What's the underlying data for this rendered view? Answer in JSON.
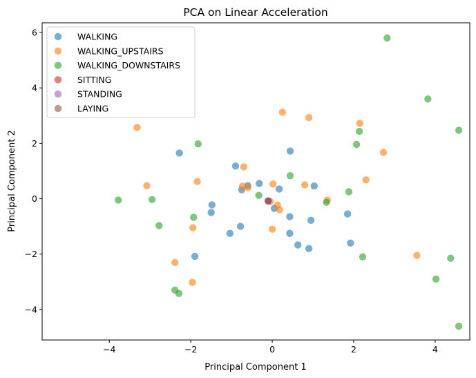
{
  "chart_data": {
    "type": "scatter",
    "title": "PCA on Linear Acceleration",
    "xlabel": "Principal Component 1",
    "ylabel": "Principal Component 2",
    "xlim": [
      -5.65,
      4.85
    ],
    "ylim": [
      -5.1,
      6.35
    ],
    "xticks": [
      -4,
      -2,
      0,
      2,
      4
    ],
    "yticks": [
      -4,
      -2,
      0,
      2,
      4,
      6
    ],
    "xtick_labels": [
      "−4",
      "−2",
      "0",
      "2",
      "4"
    ],
    "ytick_labels": [
      "−4",
      "−2",
      "0",
      "2",
      "4",
      "6"
    ],
    "grid": false,
    "legend_position": "upper-left",
    "marker_opacity": 0.6,
    "series": [
      {
        "name": "WALKING",
        "color": "#1f77b4",
        "points": [
          [
            -2.28,
            1.65
          ],
          [
            -0.9,
            1.18
          ],
          [
            0.44,
            1.72
          ],
          [
            -0.32,
            0.55
          ],
          [
            -0.6,
            0.47
          ],
          [
            -0.75,
            0.32
          ],
          [
            0.17,
            0.35
          ],
          [
            1.03,
            0.46
          ],
          [
            0.05,
            -0.35
          ],
          [
            -1.48,
            -0.22
          ],
          [
            -1.5,
            -0.5
          ],
          [
            0.43,
            -0.65
          ],
          [
            0.95,
            -0.78
          ],
          [
            1.85,
            -0.55
          ],
          [
            -0.78,
            -1.0
          ],
          [
            -1.04,
            -1.25
          ],
          [
            0.43,
            -1.25
          ],
          [
            0.63,
            -1.67
          ],
          [
            0.9,
            -1.8
          ],
          [
            1.92,
            -1.6
          ],
          [
            -1.9,
            -2.08
          ]
        ]
      },
      {
        "name": "WALKING_UPSTAIRS",
        "color": "#ff7f0e",
        "points": [
          [
            -3.32,
            2.57
          ],
          [
            0.25,
            3.12
          ],
          [
            0.9,
            2.93
          ],
          [
            2.15,
            2.72
          ],
          [
            2.73,
            1.67
          ],
          [
            -0.7,
            1.15
          ],
          [
            -3.08,
            0.47
          ],
          [
            -1.84,
            0.62
          ],
          [
            -0.73,
            0.45
          ],
          [
            -0.6,
            0.4
          ],
          [
            0.02,
            0.53
          ],
          [
            0.8,
            0.5
          ],
          [
            2.3,
            0.68
          ],
          [
            1.35,
            -0.05
          ],
          [
            0.13,
            -0.23
          ],
          [
            0.18,
            -0.4
          ],
          [
            -1.95,
            -1.05
          ],
          [
            0.0,
            -1.1
          ],
          [
            3.55,
            -2.05
          ],
          [
            -2.39,
            -2.3
          ],
          [
            -1.96,
            -3.02
          ],
          [
            -0.05,
            -0.1
          ]
        ]
      },
      {
        "name": "WALKING_DOWNSTAIRS",
        "color": "#2ca02c",
        "points": [
          [
            2.82,
            5.8
          ],
          [
            3.82,
            3.6
          ],
          [
            4.58,
            2.47
          ],
          [
            2.14,
            2.43
          ],
          [
            2.07,
            1.96
          ],
          [
            -1.82,
            1.98
          ],
          [
            0.44,
            0.83
          ],
          [
            1.88,
            0.25
          ],
          [
            -0.33,
            0.12
          ],
          [
            1.33,
            -0.13
          ],
          [
            -3.78,
            -0.05
          ],
          [
            -2.95,
            -0.03
          ],
          [
            -1.93,
            -0.67
          ],
          [
            -2.78,
            -0.97
          ],
          [
            2.22,
            -2.1
          ],
          [
            4.38,
            -2.15
          ],
          [
            4.02,
            -2.9
          ],
          [
            -2.39,
            -3.3
          ],
          [
            -2.29,
            -3.42
          ],
          [
            4.58,
            -4.6
          ]
        ]
      },
      {
        "name": "SITTING",
        "color": "#d62728",
        "points": [
          [
            -0.1,
            -0.08
          ]
        ]
      },
      {
        "name": "STANDING",
        "color": "#9467bd",
        "points": [
          [
            -0.1,
            -0.08
          ]
        ]
      },
      {
        "name": "LAYING",
        "color": "#8c564b",
        "points": [
          [
            -0.1,
            -0.08
          ]
        ]
      }
    ]
  }
}
